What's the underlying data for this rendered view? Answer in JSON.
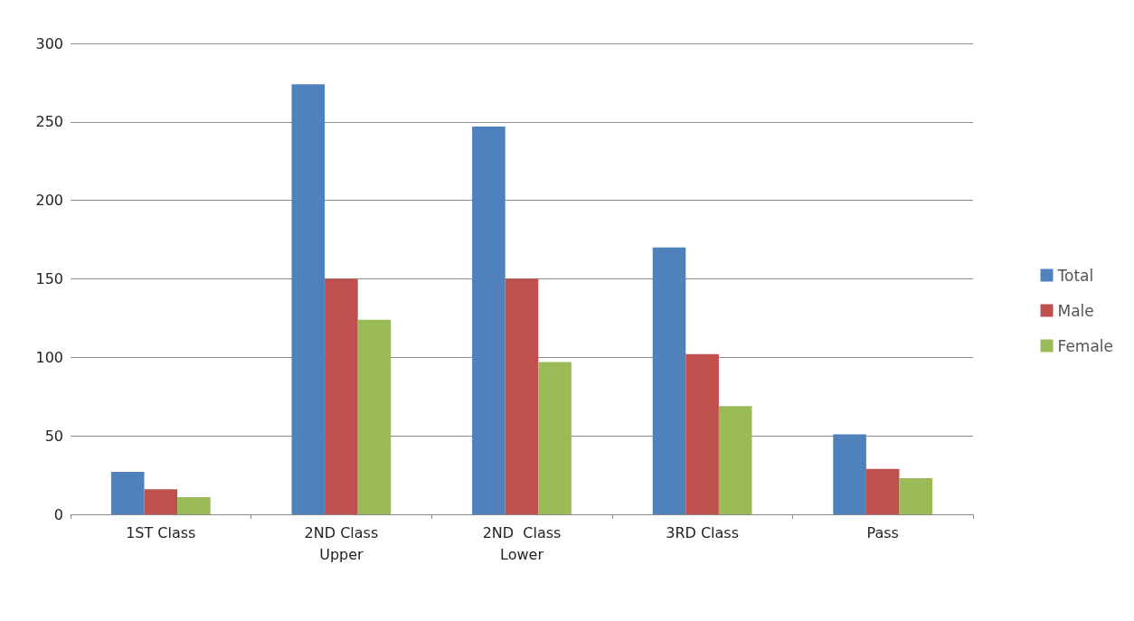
{
  "chart_data": {
    "type": "bar",
    "categories": [
      "1ST Class",
      "2ND Class\nUpper",
      "2ND  Class\nLower",
      "3RD Class",
      "Pass"
    ],
    "series": [
      {
        "name": "Total",
        "color": "#4f81bd",
        "values": [
          27,
          274,
          247,
          170,
          51
        ]
      },
      {
        "name": "Male",
        "color": "#c0504d",
        "values": [
          16,
          150,
          150,
          102,
          29
        ]
      },
      {
        "name": "Female",
        "color": "#9bbb59",
        "values": [
          11,
          124,
          97,
          69,
          23
        ]
      }
    ],
    "ylim": [
      0,
      300
    ],
    "yticks": [
      0,
      50,
      100,
      150,
      200,
      250,
      300
    ],
    "grid": "y",
    "legend": "right"
  }
}
